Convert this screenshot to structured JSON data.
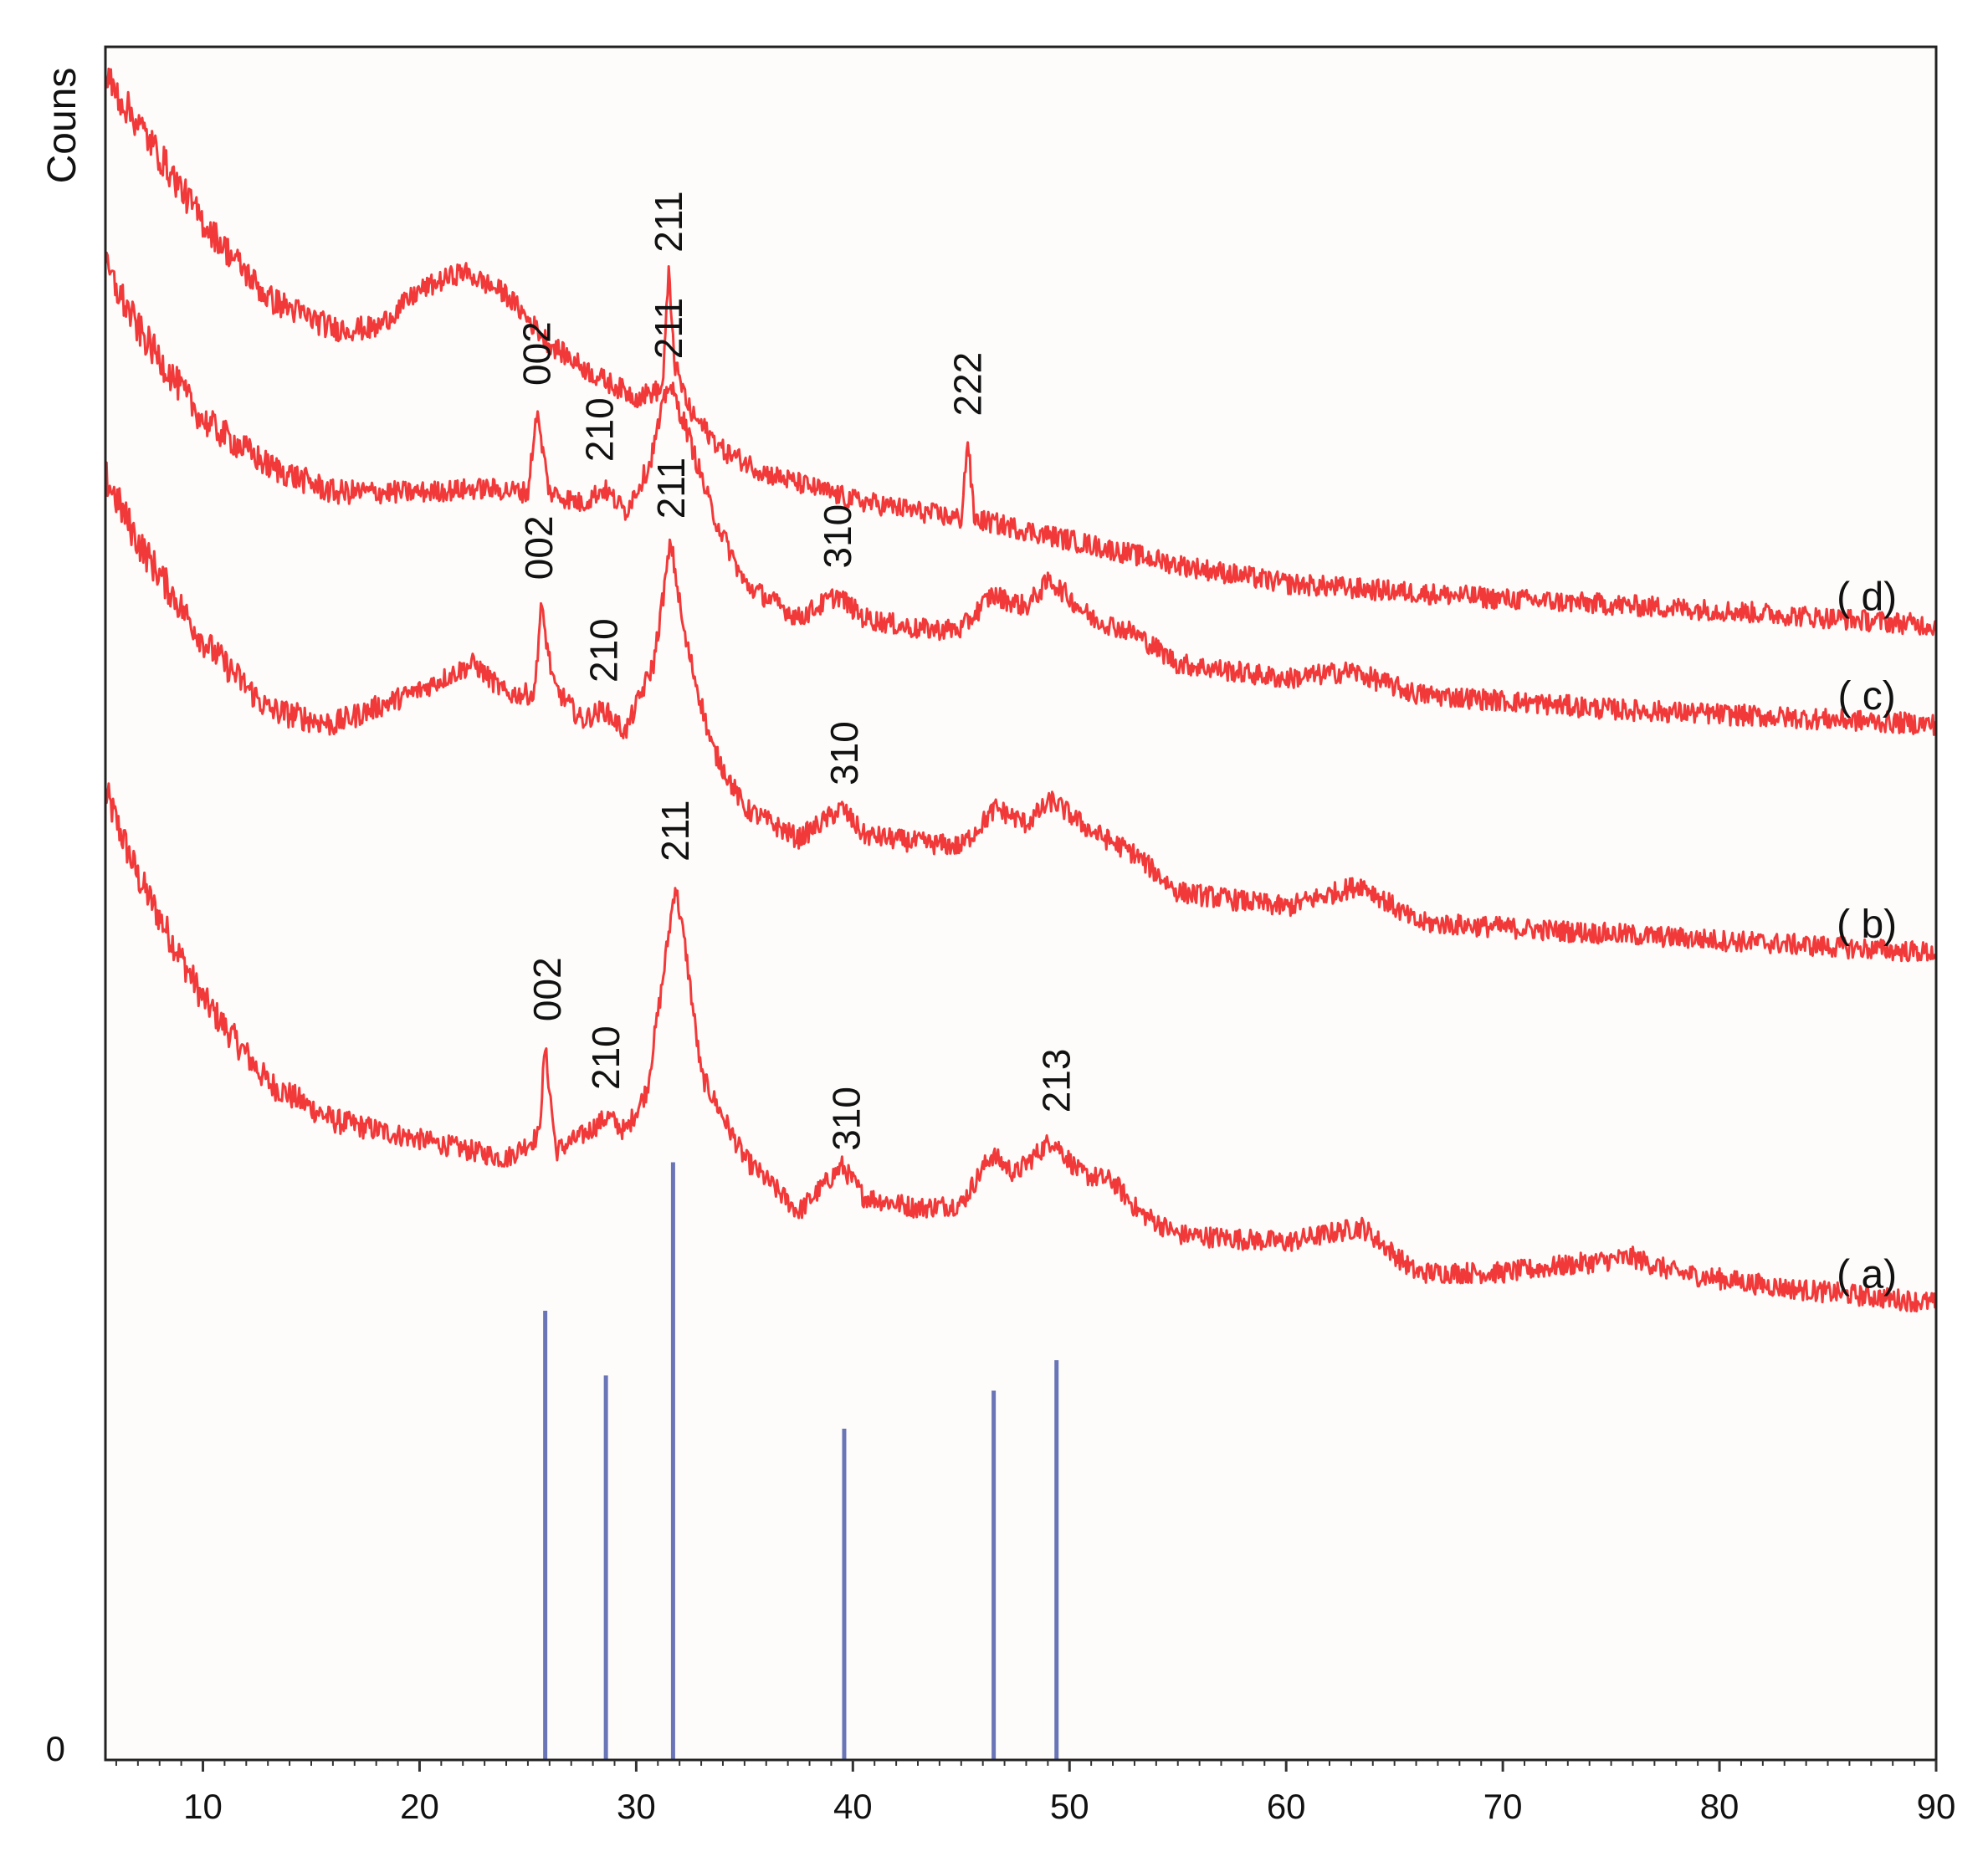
{
  "chart_data": {
    "type": "line",
    "title": "",
    "xlabel": "",
    "ylabel": "Couns",
    "y_zero_label": "0",
    "xlim": [
      5.5,
      90
    ],
    "x_ticks": [
      10,
      20,
      30,
      40,
      50,
      60,
      70,
      80,
      90
    ],
    "x_tick_labels": [
      "10",
      "20",
      "30",
      "40",
      "50",
      "60",
      "70",
      "80",
      "90"
    ],
    "grid": false,
    "colors": {
      "curve": "#f2393a",
      "reference": "#6a75b8",
      "background": "#fdfcfa"
    },
    "series": [
      {
        "name": "( a)",
        "points": [
          [
            5.5,
            1270
          ],
          [
            7,
            1160
          ],
          [
            10,
            1000
          ],
          [
            13,
            890
          ],
          [
            16,
            840
          ],
          [
            20,
            815
          ],
          [
            24,
            790
          ],
          [
            25.5,
            820
          ],
          [
            25.8,
            935
          ],
          [
            26.3,
            800
          ],
          [
            27.5,
            820
          ],
          [
            28.7,
            845
          ],
          [
            29.5,
            825
          ],
          [
            30.5,
            880
          ],
          [
            31.2,
            1020
          ],
          [
            31.8,
            1150
          ],
          [
            32.3,
            1060
          ],
          [
            33,
            900
          ],
          [
            35,
            790
          ],
          [
            37.5,
            720
          ],
          [
            39.5,
            780
          ],
          [
            40.5,
            740
          ],
          [
            43,
            725
          ],
          [
            45,
            730
          ],
          [
            46.4,
            795
          ],
          [
            47.5,
            770
          ],
          [
            49.2,
            815
          ],
          [
            50.5,
            770
          ],
          [
            52,
            760
          ],
          [
            53.2,
            720
          ],
          [
            55,
            690
          ],
          [
            60,
            680
          ],
          [
            63.5,
            700
          ],
          [
            66,
            640
          ],
          [
            70,
            640
          ],
          [
            76,
            660
          ],
          [
            78,
            640
          ],
          [
            83,
            620
          ],
          [
            90,
            600
          ]
        ]
      },
      {
        "name": "( b)",
        "points": [
          [
            5.5,
            1685
          ],
          [
            7,
            1600
          ],
          [
            10,
            1470
          ],
          [
            13,
            1380
          ],
          [
            16,
            1360
          ],
          [
            20,
            1405
          ],
          [
            22.5,
            1440
          ],
          [
            24,
            1400
          ],
          [
            25.3,
            1400
          ],
          [
            25.6,
            1515
          ],
          [
            26.2,
            1410
          ],
          [
            27.5,
            1365
          ],
          [
            28.5,
            1380
          ],
          [
            29.5,
            1350
          ],
          [
            30.8,
            1440
          ],
          [
            31.6,
            1600
          ],
          [
            32.2,
            1480
          ],
          [
            33.5,
            1330
          ],
          [
            35,
            1250
          ],
          [
            37.5,
            1210
          ],
          [
            39.5,
            1250
          ],
          [
            40.5,
            1215
          ],
          [
            43,
            1205
          ],
          [
            45,
            1200
          ],
          [
            46.6,
            1250
          ],
          [
            48,
            1230
          ],
          [
            49.2,
            1260
          ],
          [
            51,
            1220
          ],
          [
            53,
            1190
          ],
          [
            55,
            1140
          ],
          [
            60,
            1120
          ],
          [
            63.5,
            1150
          ],
          [
            66,
            1100
          ],
          [
            75,
            1085
          ],
          [
            90,
            1060
          ]
        ]
      },
      {
        "name": "( c)",
        "points": [
          [
            5.5,
            1960
          ],
          [
            7,
            1880
          ],
          [
            10,
            1760
          ],
          [
            13,
            1700
          ],
          [
            16,
            1665
          ],
          [
            20,
            1665
          ],
          [
            23,
            1670
          ],
          [
            25,
            1665
          ],
          [
            25.4,
            1770
          ],
          [
            26,
            1665
          ],
          [
            27.5,
            1650
          ],
          [
            28.5,
            1670
          ],
          [
            29.5,
            1640
          ],
          [
            30.6,
            1700
          ],
          [
            31.5,
            1810
          ],
          [
            32.3,
            1750
          ],
          [
            33.5,
            1640
          ],
          [
            35,
            1545
          ],
          [
            37.5,
            1500
          ],
          [
            39.3,
            1530
          ],
          [
            40.5,
            1500
          ],
          [
            43,
            1485
          ],
          [
            45,
            1485
          ],
          [
            46.4,
            1530
          ],
          [
            48,
            1515
          ],
          [
            49.1,
            1550
          ],
          [
            51,
            1500
          ],
          [
            53,
            1480
          ],
          [
            55,
            1440
          ],
          [
            60,
            1420
          ],
          [
            63,
            1430
          ],
          [
            66,
            1400
          ],
          [
            75,
            1380
          ],
          [
            90,
            1360
          ]
        ]
      },
      {
        "name": "( d)",
        "points": [
          [
            5.5,
            2210
          ],
          [
            7,
            2150
          ],
          [
            10,
            2020
          ],
          [
            13,
            1920
          ],
          [
            16,
            1880
          ],
          [
            18,
            1880
          ],
          [
            20,
            1930
          ],
          [
            22,
            1955
          ],
          [
            24,
            1925
          ],
          [
            26,
            1860
          ],
          [
            28,
            1820
          ],
          [
            30,
            1790
          ],
          [
            31.2,
            1800
          ],
          [
            31.5,
            1950
          ],
          [
            31.8,
            1830
          ],
          [
            32.5,
            1770
          ],
          [
            34,
            1720
          ],
          [
            36,
            1690
          ],
          [
            40,
            1655
          ],
          [
            45,
            1630
          ],
          [
            45.3,
            1735
          ],
          [
            45.6,
            1630
          ],
          [
            48,
            1615
          ],
          [
            55,
            1570
          ],
          [
            60,
            1545
          ],
          [
            70,
            1525
          ],
          [
            80,
            1510
          ],
          [
            90,
            1490
          ]
        ]
      }
    ],
    "reference_lines": [
      {
        "x": 25.8,
        "y": 590
      },
      {
        "x": 28.6,
        "y": 505
      },
      {
        "x": 31.7,
        "y": 785
      },
      {
        "x": 39.6,
        "y": 435
      },
      {
        "x": 46.5,
        "y": 485
      },
      {
        "x": 49.4,
        "y": 525
      }
    ],
    "annotations": [
      {
        "series": "( a)",
        "text": "002",
        "x": 25.9,
        "y": 970
      },
      {
        "series": "( a)",
        "text": "210",
        "x": 28.6,
        "y": 880
      },
      {
        "series": "( a)",
        "text": "211",
        "x": 31.8,
        "y": 1180
      },
      {
        "series": "( a)",
        "text": "310",
        "x": 39.7,
        "y": 800
      },
      {
        "series": "( a)",
        "text": "213",
        "x": 49.4,
        "y": 850
      },
      {
        "series": "( b)",
        "text": "002",
        "x": 25.5,
        "y": 1550
      },
      {
        "series": "( b)",
        "text": "210",
        "x": 28.5,
        "y": 1415
      },
      {
        "series": "( b)",
        "text": "211",
        "x": 31.6,
        "y": 1630
      },
      {
        "series": "( b)",
        "text": "310",
        "x": 39.6,
        "y": 1280
      },
      {
        "series": "( c)",
        "text": "002",
        "x": 25.4,
        "y": 1805
      },
      {
        "series": "( c)",
        "text": "210",
        "x": 28.3,
        "y": 1705
      },
      {
        "series": "( c)",
        "text": "211",
        "x": 31.5,
        "y": 1840
      },
      {
        "series": "( c)",
        "text": "310",
        "x": 39.3,
        "y": 1565
      },
      {
        "series": "( d)",
        "text": "211",
        "x": 31.5,
        "y": 1980
      },
      {
        "series": "( d)",
        "text": "222",
        "x": 45.3,
        "y": 1765
      }
    ],
    "curve_labels": [
      {
        "text": "( a)",
        "x": 86.8,
        "y": 620
      },
      {
        "text": "( b)",
        "x": 86.8,
        "y": 1080
      },
      {
        "text": "( c)",
        "x": 86.8,
        "y": 1380
      },
      {
        "text": "( d)",
        "x": 86.8,
        "y": 1510
      }
    ]
  }
}
